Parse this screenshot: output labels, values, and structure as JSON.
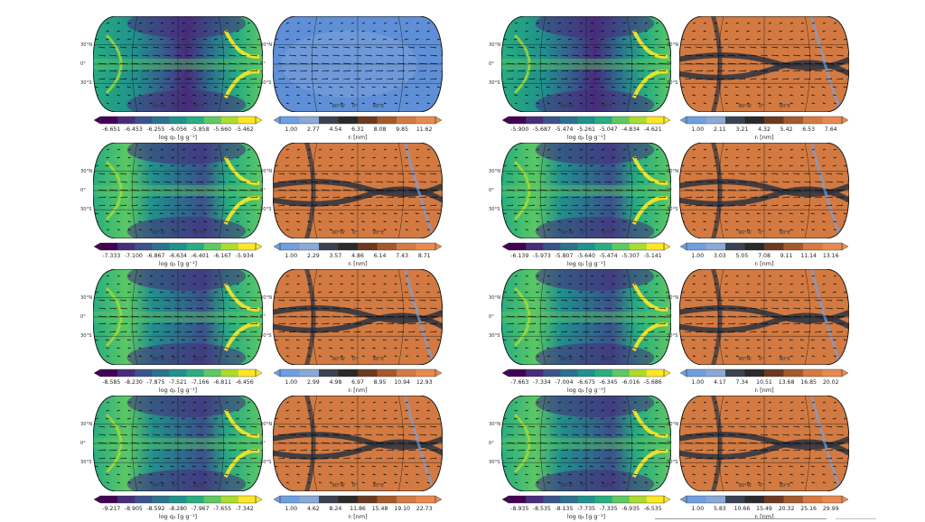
{
  "lat_labels": [
    "30°N",
    "0°",
    "30°S"
  ],
  "lon_labels": [
    "90°W",
    "0°",
    "90°E"
  ],
  "colors": {
    "viridis": [
      "#440154",
      "#472c7a",
      "#3b518b",
      "#2c718e",
      "#21908d",
      "#27ad81",
      "#5cc863",
      "#aadc32",
      "#fde725"
    ],
    "coolwarm_radius": [
      "#5f8fd6",
      "#7aa0d8",
      "#2c3340",
      "#3a2e28",
      "#b86a38",
      "#d27a42",
      "#e38a4f"
    ],
    "q_cbar": [
      "#440154",
      "#472d7b",
      "#3b528b",
      "#2c728e",
      "#21918c",
      "#28ae80",
      "#5ec962",
      "#addc30",
      "#fde725"
    ],
    "r_cbar": [
      "#6f9fe0",
      "#8aa9d6",
      "#3a4150",
      "#2a2a2a",
      "#6b3a1e",
      "#a65a2b",
      "#d47a42",
      "#e88a50"
    ]
  },
  "rows": [
    {
      "q_ticks": [
        "-6.651",
        "-6.453",
        "-6.255",
        "-6.056",
        "-5.858",
        "-5.660",
        "-5.462"
      ],
      "q_label": "log  q₁ [g g⁻¹]",
      "r_ticks": [
        "1.00",
        "2.77",
        "4.54",
        "6.31",
        "8.08",
        "9.85",
        "11.62"
      ],
      "r_label": "rₗ [nm]",
      "q_ticks_r": [
        "-5.900",
        "-5.687",
        "-5.474",
        "-5.261",
        "-5.047",
        "-4.834",
        "-4.621"
      ],
      "q_label_r": "log  q₁ [g g⁻¹]",
      "r_ticks_r": [
        "1.00",
        "2.11",
        "3.21",
        "4.32",
        "5.42",
        "6.53",
        "7.64"
      ],
      "r_label_r": "rₗ [nm]"
    },
    {
      "q_ticks": [
        "-7.333",
        "-7.100",
        "-6.867",
        "-6.634",
        "-6.401",
        "-6.167",
        "-5.934"
      ],
      "q_label": "log  q₁ [g g⁻¹]",
      "r_ticks": [
        "1.00",
        "2.29",
        "3.57",
        "4.86",
        "6.14",
        "7.43",
        "8.71"
      ],
      "r_label": "rₗ [nm]",
      "q_ticks_r": [
        "-6.139",
        "-5.973",
        "-5.807",
        "-5.640",
        "-5.474",
        "-5.307",
        "-5.141"
      ],
      "q_label_r": "log  q₁ [g g⁻¹]",
      "r_ticks_r": [
        "1.00",
        "3.03",
        "5.05",
        "7.08",
        "9.11",
        "11.14",
        "13.16"
      ],
      "r_label_r": "rₗ [nm]"
    },
    {
      "q_ticks": [
        "-8.585",
        "-8.230",
        "-7.875",
        "-7.521",
        "-7.166",
        "-6.811",
        "-6.456"
      ],
      "q_label": "log  q₁ [g g⁻¹]",
      "r_ticks": [
        "1.00",
        "2.99",
        "4.98",
        "6.97",
        "8.95",
        "10.94",
        "12.93"
      ],
      "r_label": "rₗ [nm]",
      "q_ticks_r": [
        "-7.663",
        "-7.334",
        "-7.004",
        "-6.675",
        "-6.345",
        "-6.016",
        "-5.686"
      ],
      "q_label_r": "log  q₁ [g g⁻¹]",
      "r_ticks_r": [
        "1.00",
        "4.17",
        "7.34",
        "10.51",
        "13.68",
        "16.85",
        "20.02"
      ],
      "r_label_r": "rₗ [nm]"
    },
    {
      "q_ticks": [
        "-9.217",
        "-8.905",
        "-8.592",
        "-8.280",
        "-7.967",
        "-7.655",
        "-7.342"
      ],
      "q_label": "log  q₁ [g g⁻¹]",
      "r_ticks": [
        "1.00",
        "4.62",
        "8.24",
        "11.86",
        "15.48",
        "19.10",
        "22.73"
      ],
      "r_label": "rₗ [nm]",
      "q_ticks_r": [
        "-8.935",
        "-8.535",
        "-8.135",
        "-7.735",
        "-7.335",
        "-6.935",
        "-6.535"
      ],
      "q_label_r": "log  q₁ [g g⁻¹]",
      "r_ticks_r": [
        "1.00",
        "5.83",
        "10.66",
        "15.49",
        "20.32",
        "25.16",
        "29.99"
      ],
      "r_label_r": "rₗ [nm]"
    }
  ]
}
